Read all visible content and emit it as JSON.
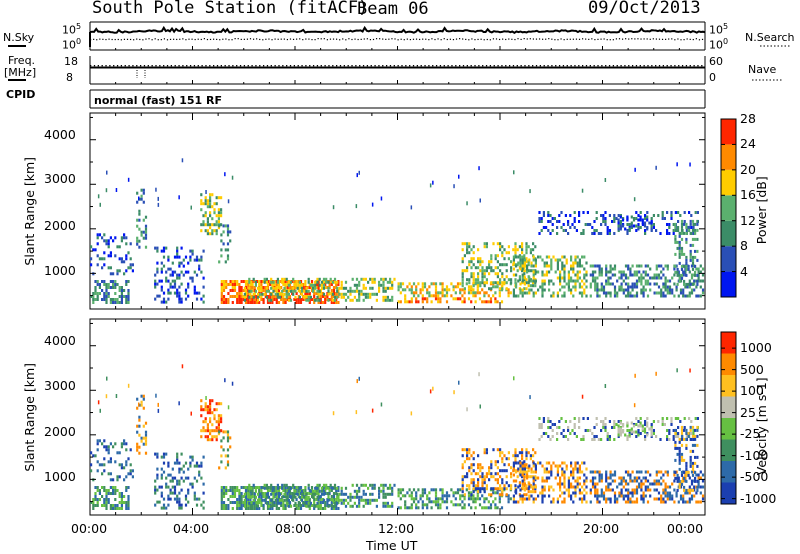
{
  "header": {
    "station": "South Pole Station (fitACF)",
    "beam": "Beam 06",
    "date": "09/Oct/2013"
  },
  "top_panels": {
    "nsky_label": "N.Sky",
    "nsky_tick_top": "10^5",
    "nsky_tick_bottom": "10^0",
    "nsearch_label": "N.Search",
    "nsearch_tick_top": "10^5",
    "nsearch_tick_bottom": "10^0",
    "freq_label_1": "Freq.",
    "freq_label_2": "[MHz]",
    "freq_tick_top": "18",
    "freq_tick_bottom": "8",
    "nave_label": "Nave",
    "nave_tick_top": "60",
    "nave_tick_bottom": "0",
    "cpid_label": "CPID",
    "cpid_value": "normal (fast) 151 RF"
  },
  "chart_data": [
    {
      "type": "heatmap",
      "title": "",
      "quantity": "Power",
      "colorbar_label": "Power [dB]",
      "colorbar_ticks": [
        "4",
        "8",
        "12",
        "16",
        "20",
        "24",
        "28"
      ],
      "colorbar_colors": [
        "#0016f0",
        "#2a4fb6",
        "#3b8c67",
        "#5bb06e",
        "#ffcc00",
        "#ff8a00",
        "#ff2600"
      ],
      "ylabel": "Slant Range [km]",
      "yticks": [
        "1000",
        "2000",
        "3000",
        "4000"
      ],
      "ylim": [
        200,
        4600
      ],
      "xlabel": "",
      "xlim": [
        "00:00",
        "24:00"
      ]
    },
    {
      "type": "heatmap",
      "title": "",
      "quantity": "Velocity",
      "colorbar_label": "Velocity [m s-1]",
      "colorbar_ticks": [
        "1000",
        "500",
        "100",
        "25",
        "-25",
        "-100",
        "-500",
        "-1000"
      ],
      "colorbar_colors": [
        "#1b3fb0",
        "#2d6aa8",
        "#3f8f5f",
        "#66c042",
        "#c0c0b0",
        "#ffc020",
        "#ff8a00",
        "#ff2600"
      ],
      "ylabel": "Slant Range [km]",
      "yticks": [
        "1000",
        "2000",
        "3000",
        "4000"
      ],
      "ylim": [
        200,
        4600
      ],
      "xlabel": "Time UT",
      "xticks": [
        "00:00",
        "04:00",
        "08:00",
        "12:00",
        "16:00",
        "20:00",
        "00:00"
      ],
      "xlim": [
        "00:00",
        "24:00"
      ]
    }
  ]
}
